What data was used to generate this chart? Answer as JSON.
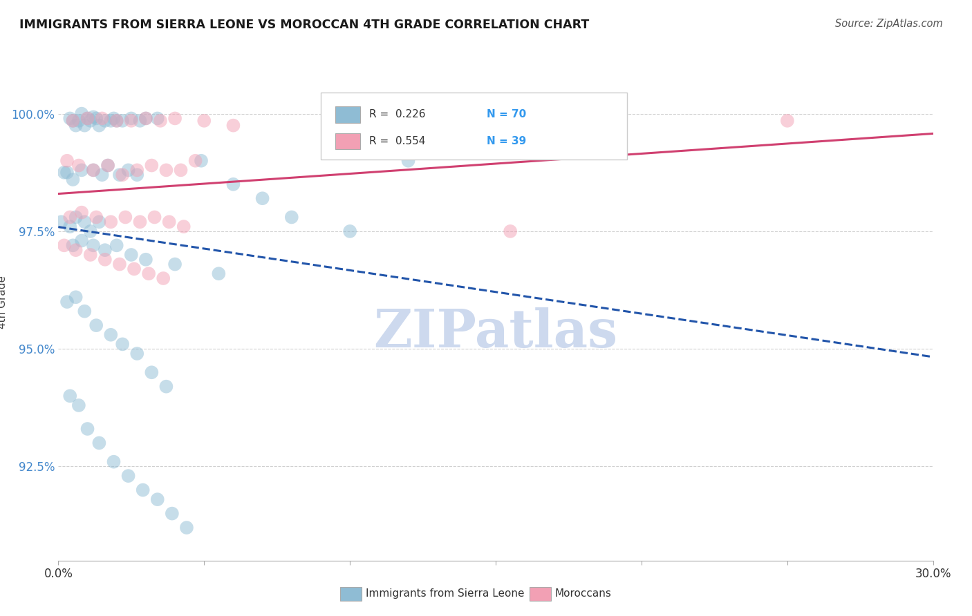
{
  "title": "IMMIGRANTS FROM SIERRA LEONE VS MOROCCAN 4TH GRADE CORRELATION CHART",
  "source": "Source: ZipAtlas.com",
  "ylabel": "4th Grade",
  "xlim": [
    0.0,
    0.3
  ],
  "ylim": [
    0.905,
    1.015
  ],
  "yticks": [
    0.925,
    0.95,
    0.975,
    1.0
  ],
  "ytick_labels": [
    "92.5%",
    "95.0%",
    "97.5%",
    "100.0%"
  ],
  "r_blue": "0.226",
  "n_blue": "70",
  "r_pink": "0.554",
  "n_pink": "39",
  "blue_color": "#8fbcd4",
  "pink_color": "#f2a0b4",
  "blue_line_color": "#2255aa",
  "pink_line_color": "#d04070",
  "background": "#ffffff",
  "grid_color": "#d0d0d0",
  "watermark": "ZIPatlas",
  "watermark_color": "#cdd9ee",
  "blue_scatter_x": [
    0.005,
    0.01,
    0.014,
    0.008,
    0.012,
    0.02,
    0.025,
    0.03,
    0.018,
    0.006,
    0.004,
    0.007,
    0.009,
    0.011,
    0.013,
    0.016,
    0.019,
    0.022,
    0.028,
    0.034,
    0.002,
    0.003,
    0.005,
    0.008,
    0.012,
    0.015,
    0.017,
    0.021,
    0.024,
    0.027,
    0.001,
    0.004,
    0.006,
    0.009,
    0.011,
    0.014,
    0.005,
    0.008,
    0.012,
    0.016,
    0.02,
    0.025,
    0.03,
    0.04,
    0.055,
    0.003,
    0.006,
    0.009,
    0.013,
    0.018,
    0.022,
    0.027,
    0.032,
    0.037,
    0.004,
    0.007,
    0.01,
    0.014,
    0.019,
    0.024,
    0.029,
    0.034,
    0.039,
    0.044,
    0.049,
    0.06,
    0.07,
    0.08,
    0.1,
    0.12
  ],
  "blue_scatter_y": [
    0.9985,
    0.999,
    0.9975,
    1.0,
    0.9993,
    0.9985,
    0.999,
    0.999,
    0.9985,
    0.9975,
    0.999,
    0.9985,
    0.9975,
    0.9985,
    0.999,
    0.9985,
    0.999,
    0.9985,
    0.9985,
    0.999,
    0.9875,
    0.9875,
    0.986,
    0.988,
    0.988,
    0.987,
    0.989,
    0.987,
    0.988,
    0.987,
    0.977,
    0.976,
    0.978,
    0.977,
    0.975,
    0.977,
    0.972,
    0.973,
    0.972,
    0.971,
    0.972,
    0.97,
    0.969,
    0.968,
    0.966,
    0.96,
    0.961,
    0.958,
    0.955,
    0.953,
    0.951,
    0.949,
    0.945,
    0.942,
    0.94,
    0.938,
    0.933,
    0.93,
    0.926,
    0.923,
    0.92,
    0.918,
    0.915,
    0.912,
    0.99,
    0.985,
    0.982,
    0.978,
    0.975,
    0.99
  ],
  "pink_scatter_x": [
    0.005,
    0.01,
    0.015,
    0.02,
    0.025,
    0.03,
    0.035,
    0.04,
    0.05,
    0.06,
    0.003,
    0.007,
    0.012,
    0.017,
    0.022,
    0.027,
    0.032,
    0.037,
    0.042,
    0.047,
    0.004,
    0.008,
    0.013,
    0.018,
    0.023,
    0.028,
    0.033,
    0.038,
    0.043,
    0.25,
    0.002,
    0.006,
    0.011,
    0.016,
    0.021,
    0.026,
    0.031,
    0.036,
    0.155
  ],
  "pink_scatter_y": [
    0.9985,
    0.999,
    0.999,
    0.9985,
    0.9985,
    0.999,
    0.9985,
    0.999,
    0.9985,
    0.9975,
    0.99,
    0.989,
    0.988,
    0.989,
    0.987,
    0.988,
    0.989,
    0.988,
    0.988,
    0.99,
    0.978,
    0.979,
    0.978,
    0.977,
    0.978,
    0.977,
    0.978,
    0.977,
    0.976,
    0.9985,
    0.972,
    0.971,
    0.97,
    0.969,
    0.968,
    0.967,
    0.966,
    0.965,
    0.975
  ]
}
